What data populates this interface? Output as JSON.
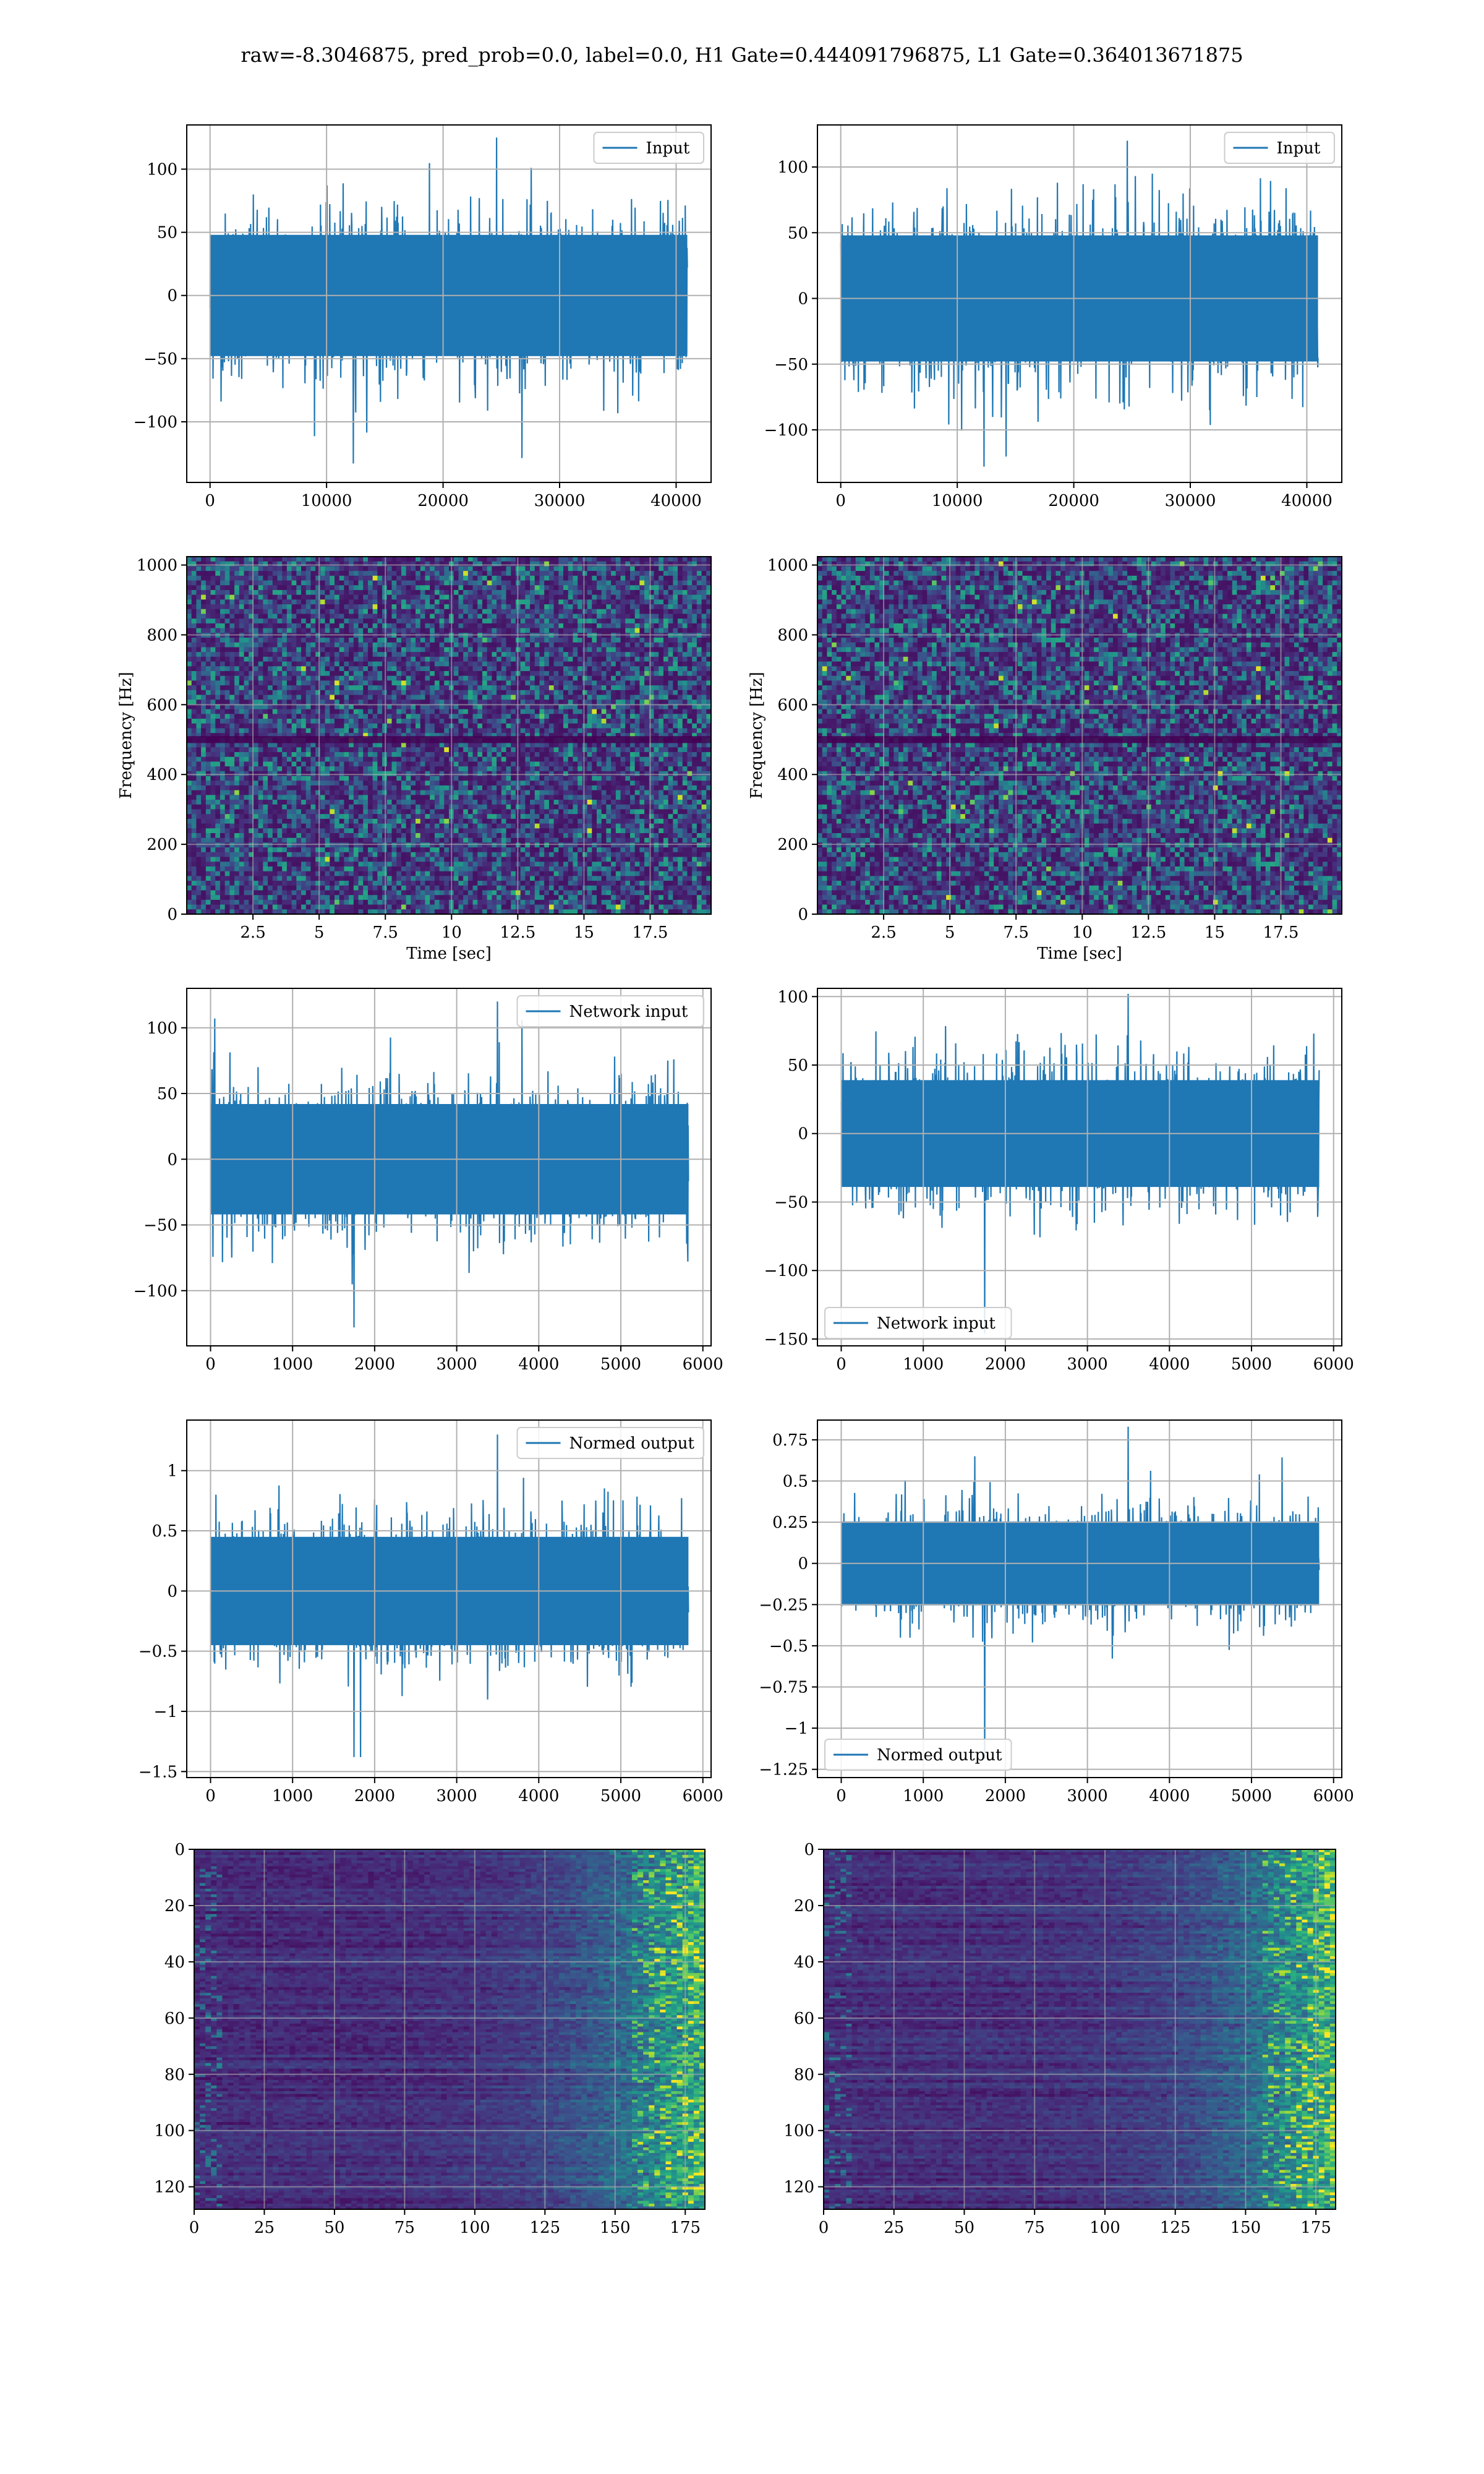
{
  "figure": {
    "title": "raw=-8.3046875, pred_prob=0.0, label=0.0, H1 Gate=0.444091796875, L1 Gate=0.364013671875"
  },
  "colors": {
    "line": "#1f77b4",
    "grid": "#b0b0b0",
    "viridis": [
      "#440154",
      "#472d7b",
      "#3b528b",
      "#2c728e",
      "#21918c",
      "#28ae80",
      "#5ec962",
      "#addc30",
      "#fde725"
    ]
  },
  "chart_data": [
    {
      "id": "input-h1",
      "type": "line",
      "legend": "Input",
      "legend_loc": "upper right",
      "xlim": [
        -2000,
        43000
      ],
      "ylim": [
        -148,
        135
      ],
      "xticks": [
        0,
        10000,
        20000,
        30000,
        40000
      ],
      "yticks": [
        -100,
        -50,
        0,
        50,
        100
      ],
      "x_range": [
        0,
        40960
      ],
      "amplitude": 32,
      "peak": [
        125,
        -133
      ],
      "xlabel": "",
      "ylabel": "",
      "grid": true
    },
    {
      "id": "input-l1",
      "type": "line",
      "legend": "Input",
      "legend_loc": "upper right",
      "xlim": [
        -2000,
        43000
      ],
      "ylim": [
        -140,
        132
      ],
      "xticks": [
        0,
        10000,
        20000,
        30000,
        40000
      ],
      "yticks": [
        -100,
        -50,
        0,
        50,
        100
      ],
      "x_range": [
        0,
        40960
      ],
      "amplitude": 32,
      "peak": [
        120,
        -128
      ],
      "xlabel": "",
      "ylabel": "",
      "grid": true
    },
    {
      "id": "spec-h1",
      "type": "heatmap",
      "xlim": [
        0,
        19.8
      ],
      "ylim": [
        0,
        1024
      ],
      "xticks": [
        2.5,
        5.0,
        7.5,
        10.0,
        12.5,
        15.0,
        17.5
      ],
      "yticks": [
        0,
        200,
        400,
        600,
        800,
        1000
      ],
      "xlabel": "Time [sec]",
      "ylabel": "Frequency [Hz]",
      "grid": true
    },
    {
      "id": "spec-l1",
      "type": "heatmap",
      "xlim": [
        0,
        19.8
      ],
      "ylim": [
        0,
        1024
      ],
      "xticks": [
        2.5,
        5.0,
        7.5,
        10.0,
        12.5,
        15.0,
        17.5
      ],
      "yticks": [
        0,
        200,
        400,
        600,
        800,
        1000
      ],
      "xlabel": "Time [sec]",
      "ylabel": "Frequency [Hz]",
      "grid": true
    },
    {
      "id": "net-h1",
      "type": "line",
      "legend": "Network input",
      "legend_loc": "upper right",
      "xlim": [
        -290,
        6100
      ],
      "ylim": [
        -142,
        130
      ],
      "xticks": [
        0,
        1000,
        2000,
        3000,
        4000,
        5000,
        6000
      ],
      "yticks": [
        -100,
        -50,
        0,
        50,
        100
      ],
      "x_range": [
        0,
        5824
      ],
      "amplitude": 28,
      "peak": [
        120,
        -128
      ],
      "xlabel": "",
      "ylabel": "",
      "grid": true
    },
    {
      "id": "net-l1",
      "type": "line",
      "legend": "Network input",
      "legend_loc": "lower left",
      "xlim": [
        -290,
        6100
      ],
      "ylim": [
        -155,
        106
      ],
      "xticks": [
        0,
        1000,
        2000,
        3000,
        4000,
        5000,
        6000
      ],
      "yticks": [
        -150,
        -100,
        -50,
        0,
        50,
        100
      ],
      "x_range": [
        0,
        5824
      ],
      "amplitude": 26,
      "peak": [
        102,
        -146
      ],
      "xlabel": "",
      "ylabel": "",
      "grid": true
    },
    {
      "id": "norm-h1",
      "type": "line",
      "legend": "Normed output",
      "legend_loc": "upper right",
      "xlim": [
        -290,
        6100
      ],
      "ylim": [
        -1.55,
        1.42
      ],
      "xticks": [
        0,
        1000,
        2000,
        3000,
        4000,
        5000,
        6000
      ],
      "yticks": [
        -1.5,
        -1.0,
        -0.5,
        0.0,
        0.5,
        1.0
      ],
      "x_range": [
        0,
        5824
      ],
      "amplitude": 0.3,
      "peak": [
        1.3,
        -1.38
      ],
      "xlabel": "",
      "ylabel": "",
      "grid": true
    },
    {
      "id": "norm-l1",
      "type": "line",
      "legend": "Normed output",
      "legend_loc": "lower left",
      "xlim": [
        -290,
        6100
      ],
      "ylim": [
        -1.3,
        0.87
      ],
      "xticks": [
        0,
        1000,
        2000,
        3000,
        4000,
        5000,
        6000
      ],
      "yticks": [
        -1.25,
        -1.0,
        -0.75,
        -0.5,
        -0.25,
        0.0,
        0.25,
        0.5,
        0.75
      ],
      "x_range": [
        0,
        5824
      ],
      "amplitude": 0.17,
      "peak": [
        0.83,
        -1.19
      ],
      "xlabel": "",
      "ylabel": "",
      "grid": true
    },
    {
      "id": "feat-h1",
      "type": "heatmap",
      "xlim": [
        0,
        182
      ],
      "ylim": [
        128,
        0
      ],
      "xticks": [
        0,
        25,
        50,
        75,
        100,
        125,
        150,
        175
      ],
      "yticks": [
        0,
        20,
        40,
        60,
        80,
        100,
        120
      ],
      "xlabel": "",
      "ylabel": "",
      "grid": true
    },
    {
      "id": "feat-l1",
      "type": "heatmap",
      "xlim": [
        0,
        182
      ],
      "ylim": [
        128,
        0
      ],
      "xticks": [
        0,
        25,
        50,
        75,
        100,
        125,
        150,
        175
      ],
      "yticks": [
        0,
        20,
        40,
        60,
        80,
        100,
        120
      ],
      "xlabel": "",
      "ylabel": "",
      "grid": true
    }
  ]
}
